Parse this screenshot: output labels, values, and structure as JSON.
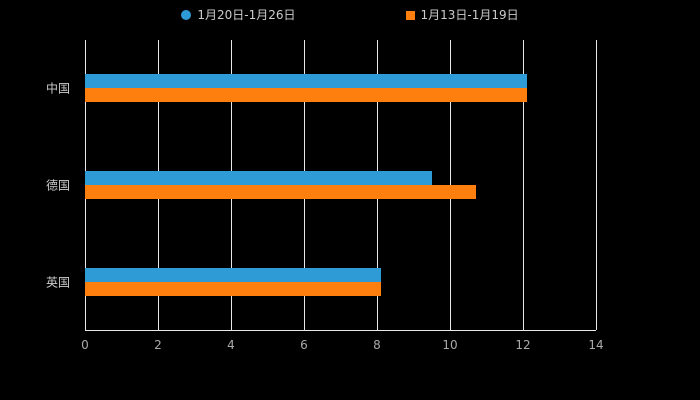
{
  "colors": {
    "background": "#000000",
    "grid": "#e8e8e8",
    "axis_line": "#e8e8e8",
    "tick_text": "#aaaaaa",
    "label_text": "#cccccc"
  },
  "chart_data": {
    "type": "bar",
    "orientation": "horizontal",
    "categories": [
      "中国",
      "德国",
      "英国"
    ],
    "series": [
      {
        "name": "1月20日-1月26日",
        "marker": "circle",
        "color": "#2E9BD6",
        "values": [
          12.1,
          9.5,
          8.1
        ]
      },
      {
        "name": "1月13日-1月19日",
        "marker": "square",
        "color": "#FF7F0E",
        "values": [
          12.1,
          10.7,
          8.1
        ]
      }
    ],
    "xlim": [
      0,
      14
    ],
    "xticks": [
      0,
      2,
      4,
      6,
      8,
      10,
      12,
      14
    ],
    "grid": true,
    "legend_position": "top"
  }
}
